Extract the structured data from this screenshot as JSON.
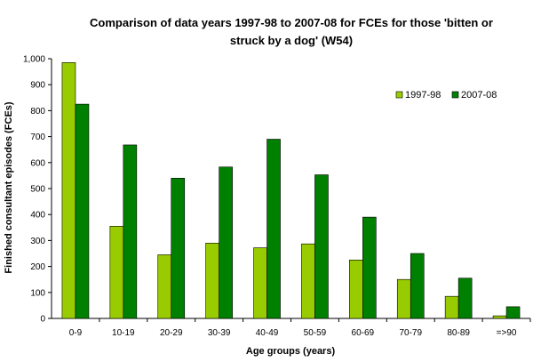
{
  "chart_data": {
    "type": "bar",
    "title_lines": [
      "Comparison of data years 1997-98 to 2007-08 for FCEs for those 'bitten or",
      "struck by a dog' (W54)"
    ],
    "xlabel": "Age groups (years)",
    "ylabel": "Finished consultant episodes (FCEs)",
    "ylim": [
      0,
      1000
    ],
    "yticks": [
      0,
      100,
      200,
      300,
      400,
      500,
      600,
      700,
      800,
      900,
      1000
    ],
    "ytick_labels": [
      "0",
      "100",
      "200",
      "300",
      "400",
      "500",
      "600",
      "700",
      "800",
      "900",
      "1,000"
    ],
    "categories": [
      "0-9",
      "10-19",
      "20-29",
      "30-39",
      "40-49",
      "50-59",
      "60-69",
      "70-79",
      "80-89",
      "=>90"
    ],
    "series": [
      {
        "name": "1997-98",
        "color": "#99cc00",
        "values": [
          985,
          355,
          245,
          290,
          272,
          287,
          225,
          150,
          85,
          10
        ]
      },
      {
        "name": "2007-08",
        "color": "#008000",
        "values": [
          825,
          668,
          540,
          583,
          690,
          553,
          390,
          250,
          155,
          45
        ]
      }
    ],
    "legend_position": "top-right",
    "grid": false
  }
}
